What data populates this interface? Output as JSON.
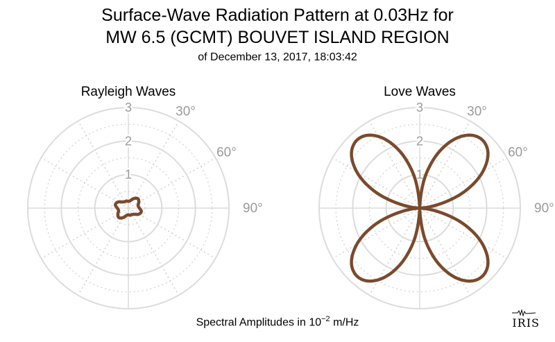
{
  "title_line1": "Surface-Wave Radiation Pattern at 0.03Hz for",
  "title_line2": "MW 6.5 (GCMT) BOUVET ISLAND REGION",
  "subtitle": "of December 13, 2017, 18:03:42",
  "footnote_prefix": "Spectral Amplitudes in 10",
  "footnote_exp": "−2",
  "footnote_suffix": " m/Hz",
  "logo_text": "IRIS",
  "colors": {
    "pattern": "#7a4a2c",
    "grid": "#dcdcdc",
    "grid_dotted": "#d0d0d0",
    "labels": "#9a9a9a"
  },
  "chart_data": [
    {
      "type": "polar",
      "title": "Rayleigh Waves",
      "radial_ticks": [
        "1",
        "2",
        "3"
      ],
      "radial_max": 3,
      "angle_labels": [
        "30°",
        "60°",
        "90°"
      ],
      "pattern": {
        "description_formula": "four-lobed pattern",
        "azimuth_deg": [
          0,
          15,
          30,
          45,
          60,
          75,
          90,
          105,
          120,
          135,
          150,
          165,
          180,
          195,
          210,
          225,
          240,
          255,
          270,
          285,
          300,
          315,
          330,
          345,
          360
        ],
        "amplitude": [
          0.2,
          0.23,
          0.33,
          0.4,
          0.36,
          0.3,
          0.33,
          0.4,
          0.36,
          0.26,
          0.22,
          0.22,
          0.2,
          0.23,
          0.33,
          0.4,
          0.36,
          0.3,
          0.33,
          0.4,
          0.36,
          0.26,
          0.22,
          0.22,
          0.2
        ]
      }
    },
    {
      "type": "polar",
      "title": "Love Waves",
      "radial_ticks": [
        "1",
        "2",
        "3"
      ],
      "radial_max": 3,
      "angle_labels": [
        "30°",
        "60°",
        "90°"
      ],
      "pattern": {
        "azimuth_deg": [
          0,
          10,
          20,
          30,
          40,
          50,
          60,
          70,
          80,
          90,
          100,
          110,
          120,
          130,
          140,
          150,
          160,
          170,
          180,
          190,
          200,
          210,
          220,
          230,
          240,
          250,
          260,
          270,
          280,
          290,
          300,
          310,
          320,
          330,
          340,
          350,
          360
        ],
        "amplitude": [
          0.0,
          0.98,
          1.85,
          2.47,
          2.75,
          2.65,
          2.17,
          1.4,
          0.49,
          0.0,
          0.49,
          1.4,
          2.17,
          2.65,
          2.75,
          2.47,
          1.85,
          0.98,
          0.0,
          0.98,
          1.85,
          2.47,
          2.75,
          2.65,
          2.17,
          1.4,
          0.49,
          0.0,
          0.49,
          1.4,
          2.17,
          2.65,
          2.75,
          2.47,
          1.85,
          0.98,
          0.0
        ]
      }
    }
  ]
}
